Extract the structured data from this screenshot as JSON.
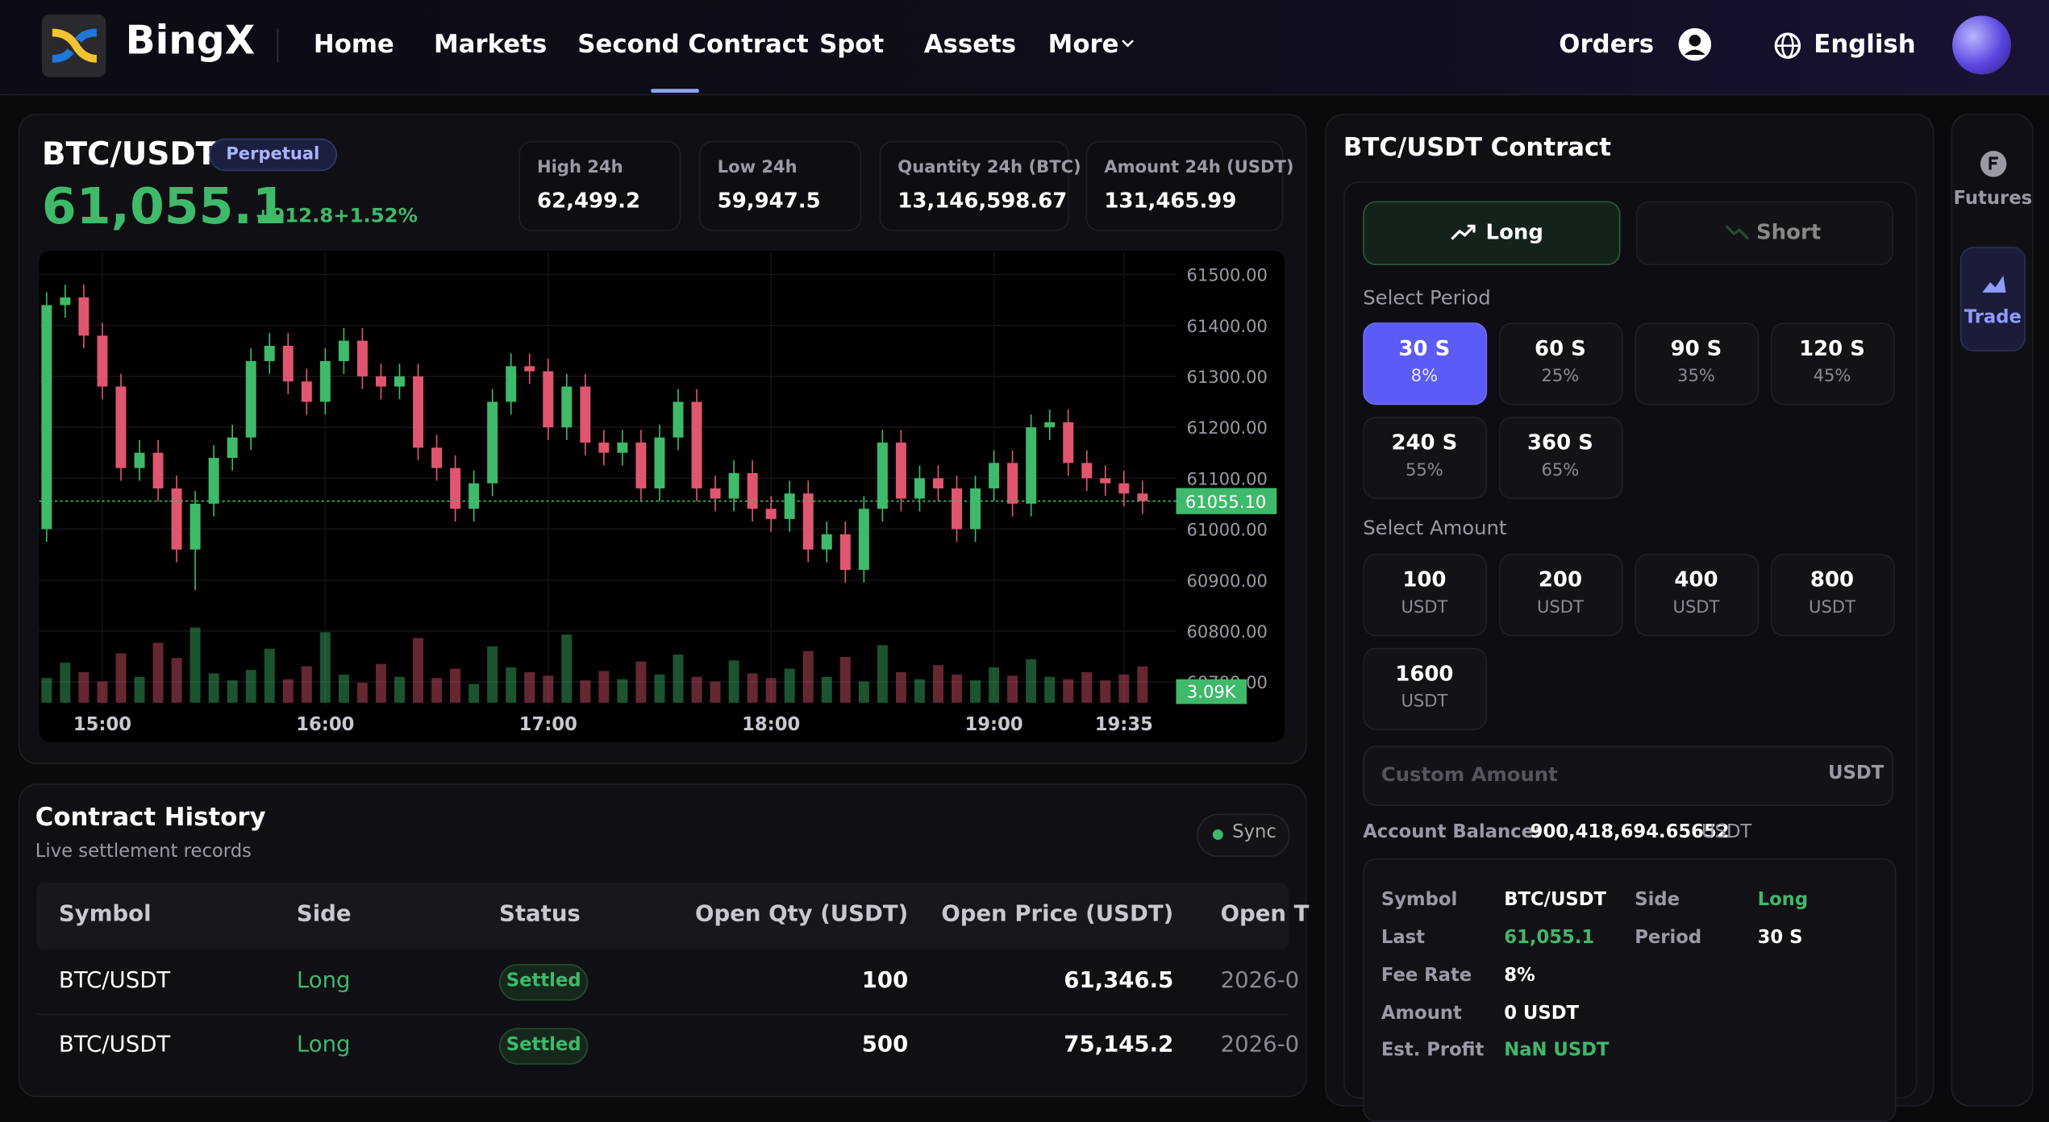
{
  "nav": {
    "brand": "BingX",
    "links": [
      "Home",
      "Markets",
      "Second Contract",
      "Spot",
      "Assets",
      "More"
    ],
    "orders": "Orders",
    "language": "English"
  },
  "ticker": {
    "symbol": "BTC/USDT",
    "badge": "Perpetual",
    "price": "61,055.1",
    "change": "+912.8",
    "change_pct": "+1.52%",
    "stats": [
      {
        "label": "High 24h",
        "value": "62,499.2"
      },
      {
        "label": "Low 24h",
        "value": "59,947.5"
      },
      {
        "label": "Quantity 24h (BTC)",
        "value": "13,146,598.67"
      },
      {
        "label": "Amount 24h (USDT)",
        "value": "131,465.99"
      }
    ]
  },
  "chart_data": {
    "type": "candlestick",
    "up_color": "#3fb96a",
    "down_color": "#e0566f",
    "grid": true,
    "x": [
      5,
      10,
      15,
      20,
      25,
      30,
      35,
      40,
      45,
      50,
      55,
      60,
      65,
      70,
      75,
      80,
      85,
      90,
      95,
      100,
      105,
      110,
      115,
      120,
      125,
      130,
      135,
      140,
      145,
      150,
      155,
      160,
      165,
      170,
      175,
      180,
      185,
      190,
      195,
      200,
      205,
      210,
      215,
      220,
      225,
      230,
      235,
      240,
      245,
      250,
      255,
      260,
      265,
      270,
      275,
      280,
      285,
      290,
      295,
      300
    ],
    "open": [
      61000,
      61440,
      61455,
      61380,
      61280,
      61120,
      61150,
      61080,
      60960,
      61050,
      61140,
      61180,
      61330,
      61360,
      61290,
      61250,
      61330,
      61370,
      61300,
      61280,
      61300,
      61160,
      61120,
      61040,
      61090,
      61250,
      61320,
      61310,
      61200,
      61280,
      61170,
      61150,
      61170,
      61080,
      61180,
      61250,
      61080,
      61060,
      61110,
      61040,
      61020,
      61070,
      60960,
      60990,
      60920,
      61040,
      61170,
      61060,
      61100,
      61080,
      61000,
      61080,
      61130,
      61050,
      61200,
      61210,
      61130,
      61100,
      61090,
      61070
    ],
    "high": [
      61465,
      61480,
      61480,
      61405,
      61305,
      61175,
      61175,
      61105,
      61075,
      61165,
      61205,
      61355,
      61385,
      61385,
      61315,
      61355,
      61395,
      61395,
      61325,
      61325,
      61325,
      61185,
      61145,
      61115,
      61275,
      61345,
      61345,
      61335,
      61305,
      61305,
      61195,
      61195,
      61195,
      61205,
      61275,
      61275,
      61105,
      61135,
      61135,
      61065,
      61095,
      61095,
      61015,
      61015,
      61065,
      61195,
      61195,
      61125,
      61125,
      61105,
      61105,
      61155,
      61155,
      61225,
      61235,
      61235,
      61155,
      61125,
      61115,
      61095
    ],
    "low": [
      60975,
      61415,
      61355,
      61255,
      61095,
      61095,
      61055,
      60935,
      60880,
      61025,
      61115,
      61155,
      61305,
      61265,
      61225,
      61225,
      61305,
      61275,
      61255,
      61255,
      61135,
      61095,
      61015,
      61015,
      61065,
      61225,
      61285,
      61175,
      61175,
      61145,
      61125,
      61125,
      61055,
      61055,
      61155,
      61055,
      61035,
      61035,
      61015,
      60995,
      60995,
      60935,
      60935,
      60895,
      60895,
      61015,
      61035,
      61035,
      61055,
      60975,
      60975,
      61055,
      61025,
      61025,
      61175,
      61105,
      61075,
      61065,
      61045,
      61030
    ],
    "close": [
      61440,
      61455,
      61380,
      61280,
      61120,
      61150,
      61080,
      60960,
      61050,
      61140,
      61180,
      61330,
      61360,
      61290,
      61250,
      61330,
      61370,
      61300,
      61280,
      61300,
      61160,
      61120,
      61040,
      61090,
      61250,
      61320,
      61310,
      61200,
      61280,
      61170,
      61150,
      61170,
      61080,
      61180,
      61250,
      61080,
      61060,
      61110,
      61040,
      61020,
      61070,
      60960,
      60990,
      60920,
      61040,
      61170,
      61060,
      61100,
      61080,
      61000,
      61080,
      61130,
      61050,
      61200,
      61210,
      61130,
      61100,
      61090,
      61070,
      61055.1
    ],
    "volume": [
      2.1,
      3.4,
      2.6,
      1.8,
      4.2,
      2.2,
      5.1,
      3.8,
      6.4,
      2.5,
      1.9,
      2.8,
      4.6,
      2.0,
      3.1,
      6.0,
      2.4,
      1.7,
      3.3,
      2.2,
      5.5,
      2.1,
      2.9,
      1.6,
      4.8,
      3.0,
      2.6,
      2.3,
      5.8,
      1.9,
      2.7,
      2.0,
      3.5,
      2.4,
      4.1,
      2.2,
      1.8,
      3.6,
      2.5,
      2.1,
      2.9,
      4.4,
      2.2,
      3.9,
      1.8,
      4.9,
      2.6,
      2.0,
      3.2,
      2.4,
      1.9,
      3.0,
      2.3,
      3.7,
      2.2,
      2.0,
      2.6,
      1.9,
      2.4,
      3.09
    ],
    "volume_label": "3.09K",
    "volume_ylim": [
      0,
      10
    ],
    "xlim": [
      3,
      302
    ],
    "xticks": [
      {
        "value": 20,
        "label": "15:00"
      },
      {
        "value": 80,
        "label": "16:00"
      },
      {
        "value": 140,
        "label": "17:00"
      },
      {
        "value": 200,
        "label": "18:00"
      },
      {
        "value": 260,
        "label": "19:00"
      },
      {
        "value": 295,
        "label": "19:35"
      }
    ],
    "ylim": [
      60654,
      61544
    ],
    "yticks": [
      {
        "value": 61500,
        "label": "61500.00"
      },
      {
        "value": 61400,
        "label": "61400.00"
      },
      {
        "value": 61300,
        "label": "61300.00"
      },
      {
        "value": 61200,
        "label": "61200.00"
      },
      {
        "value": 61100,
        "label": "61100.00"
      },
      {
        "value": 61000,
        "label": "61000.00"
      },
      {
        "value": 60900,
        "label": "60900.00"
      },
      {
        "value": 60800,
        "label": "60800.00"
      },
      {
        "value": 60700,
        "label": "60700.00"
      }
    ],
    "price_line": {
      "value": 61055.1,
      "label": "61055.10"
    }
  },
  "contract": {
    "title": "BTC/USDT Contract",
    "long": "Long",
    "short": "Short",
    "period_label": "Select Period",
    "periods": [
      {
        "time": "30 S",
        "rate": "8%"
      },
      {
        "time": "60 S",
        "rate": "25%"
      },
      {
        "time": "90 S",
        "rate": "35%"
      },
      {
        "time": "120 S",
        "rate": "45%"
      },
      {
        "time": "240 S",
        "rate": "55%"
      },
      {
        "time": "360 S",
        "rate": "65%"
      }
    ],
    "amount_label": "Select Amount",
    "amounts": [
      {
        "value": "100",
        "unit": "USDT"
      },
      {
        "value": "200",
        "unit": "USDT"
      },
      {
        "value": "400",
        "unit": "USDT"
      },
      {
        "value": "800",
        "unit": "USDT"
      },
      {
        "value": "1600",
        "unit": "USDT"
      }
    ],
    "custom_placeholder": "Custom Amount",
    "custom_unit": "USDT",
    "balance_label": "Account Balance:",
    "balance": "900,418,694.65652",
    "balance_unit": "USDT",
    "summary": [
      {
        "label": "Symbol",
        "value": "BTC/USDT"
      },
      {
        "label": "Side",
        "value": "Long"
      },
      {
        "label": "Last",
        "value": "61,055.1"
      },
      {
        "label": "Period",
        "value": "30 S"
      },
      {
        "label": "Fee Rate",
        "value": "8%"
      },
      {
        "label": "Amount",
        "value": "0 USDT"
      },
      {
        "label": "Est. Profit",
        "value": "NaN USDT"
      }
    ]
  },
  "sidebar": {
    "items": [
      "Futures",
      "Trade"
    ]
  },
  "history": {
    "title": "Contract History",
    "subtitle": "Live settlement records",
    "sync": "Sync",
    "columns": [
      "Symbol",
      "Side",
      "Status",
      "Open Qty (USDT)",
      "Open Price (USDT)",
      "Open T"
    ],
    "rows": [
      [
        "BTC/USDT",
        "Long",
        "Settled",
        "100",
        "61,346.5",
        "2026-0"
      ],
      [
        "BTC/USDT",
        "Long",
        "Settled",
        "500",
        "75,145.2",
        "2026-0"
      ]
    ]
  }
}
